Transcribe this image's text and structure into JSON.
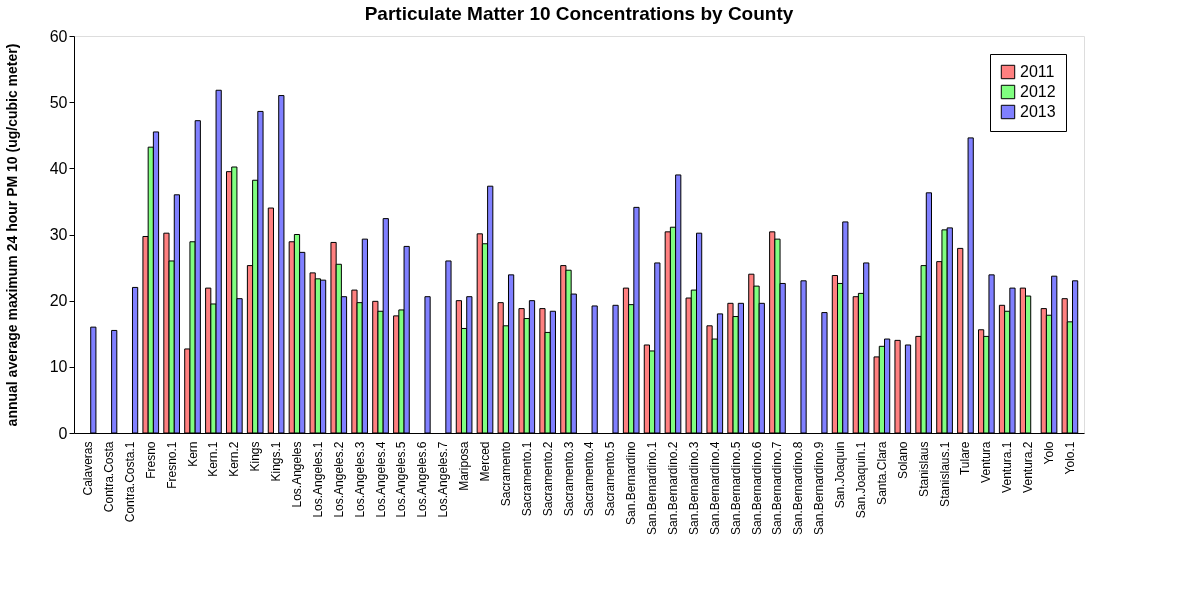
{
  "chart_data": {
    "type": "bar",
    "title": "Particulate Matter 10 Concentrations by County",
    "ylabel": "annual average maximum 24 hour PM 10 (ug/cubic meter)",
    "categories": [
      "Calaveras",
      "Contra.Costa",
      "Contra.Costa.1",
      "Fresno",
      "Fresno.1",
      "Kern",
      "Kern.1",
      "Kern.2",
      "Kings",
      "Kings.1",
      "Los.Angeles",
      "Los.Angeles.1",
      "Los.Angeles.2",
      "Los.Angeles.3",
      "Los.Angeles.4",
      "Los.Angeles.5",
      "Los.Angeles.6",
      "Los.Angeles.7",
      "Mariposa",
      "Merced",
      "Sacramento",
      "Sacramento.1",
      "Sacramento.2",
      "Sacramento.3",
      "Sacramento.4",
      "Sacramento.5",
      "San.Bernardino",
      "San.Bernardino.1",
      "San.Bernardino.2",
      "San.Bernardino.3",
      "San.Bernardino.4",
      "San.Bernardino.5",
      "San.Bernardino.6",
      "San.Bernardino.7",
      "San.Bernardino.8",
      "San.Bernardino.9",
      "San.Joaquin",
      "San.Joaquin.1",
      "Santa.Clara",
      "Solano",
      "Stanislaus",
      "Stanislaus.1",
      "Tulare",
      "Ventura",
      "Ventura.1",
      "Ventura.2",
      "Yolo",
      "Yolo.1"
    ],
    "series": [
      {
        "name": "2011",
        "color": "#ff8080",
        "values": [
          null,
          null,
          null,
          29.7,
          30.2,
          12.7,
          21.9,
          39.5,
          25.3,
          34,
          28.9,
          24.2,
          28.8,
          21.6,
          19.9,
          17.7,
          null,
          null,
          20,
          30.1,
          19.7,
          18.8,
          18.8,
          25.3,
          null,
          null,
          21.9,
          13.3,
          30.4,
          20.4,
          16.2,
          19.6,
          24,
          30.4,
          null,
          null,
          23.8,
          20.6,
          11.5,
          14,
          14.6,
          25.9,
          27.9,
          15.6,
          19.3,
          21.9,
          18.8,
          20.3
        ]
      },
      {
        "name": "2012",
        "color": "#80ff80",
        "values": [
          null,
          null,
          null,
          43.2,
          26,
          28.9,
          19.5,
          40.2,
          38.2,
          null,
          30,
          23.3,
          25.5,
          19.7,
          18.4,
          18.6,
          null,
          null,
          15.8,
          28.6,
          16.2,
          17.3,
          15.2,
          24.6,
          null,
          null,
          19.4,
          12.4,
          31.1,
          21.6,
          14.2,
          17.6,
          22.2,
          29.3,
          null,
          null,
          22.6,
          21.1,
          13.1,
          null,
          25.3,
          30.7,
          null,
          14.6,
          18.4,
          20.7,
          17.8,
          16.8
        ]
      },
      {
        "name": "2013",
        "color": "#8080ff",
        "values": [
          16,
          15.5,
          22,
          45.5,
          36,
          47.2,
          51.8,
          20.3,
          48.6,
          51,
          27.3,
          23.1,
          20.6,
          29.3,
          32.4,
          28.2,
          20.6,
          26,
          20.6,
          37.3,
          23.9,
          20,
          18.4,
          21,
          19.2,
          19.3,
          34.1,
          25.7,
          39,
          30.2,
          18,
          19.6,
          19.6,
          22.6,
          23,
          18.2,
          31.9,
          25.7,
          14.2,
          13.3,
          36.3,
          31,
          44.6,
          23.9,
          21.9,
          null,
          23.7,
          23
        ]
      }
    ],
    "ylim": [
      0,
      60
    ],
    "yticks": [
      0,
      10,
      20,
      30,
      40,
      50,
      60
    ],
    "grid": false,
    "legend": "top right"
  }
}
